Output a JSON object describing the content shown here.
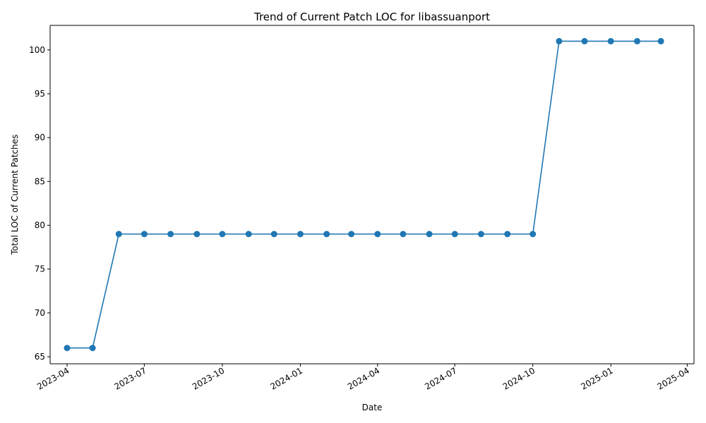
{
  "chart_data": {
    "type": "line",
    "title": "Trend of Current Patch LOC for libassuanport",
    "xlabel": "Date",
    "ylabel": "Total LOC of Current Patches",
    "x_ticks": [
      "2023-04",
      "2023-07",
      "2023-10",
      "2024-01",
      "2024-04",
      "2024-07",
      "2024-10",
      "2025-01",
      "2025-04"
    ],
    "y_ticks": [
      "65",
      "70",
      "75",
      "80",
      "85",
      "90",
      "95",
      "100"
    ],
    "ylim": [
      64.2,
      102.8
    ],
    "xlim": [
      "2023-03-12",
      "2025-04-09"
    ],
    "grid": false,
    "line_color": "#1f77b4",
    "marker": "circle",
    "series": [
      {
        "x": [
          "2023-04-01",
          "2023-05-01",
          "2023-06-01",
          "2023-07-01",
          "2023-08-01",
          "2023-09-01",
          "2023-10-01",
          "2023-11-01",
          "2023-12-01",
          "2024-01-01",
          "2024-02-01",
          "2024-03-01",
          "2024-04-01",
          "2024-05-01",
          "2024-06-01",
          "2024-07-01",
          "2024-08-01",
          "2024-09-01",
          "2024-10-01",
          "2024-11-01",
          "2024-12-01",
          "2025-01-01",
          "2025-02-01",
          "2025-03-01"
        ],
        "values": [
          66,
          66,
          79,
          79,
          79,
          79,
          79,
          79,
          79,
          79,
          79,
          79,
          79,
          79,
          79,
          79,
          79,
          79,
          79,
          101,
          101,
          101,
          101,
          101
        ]
      }
    ]
  }
}
